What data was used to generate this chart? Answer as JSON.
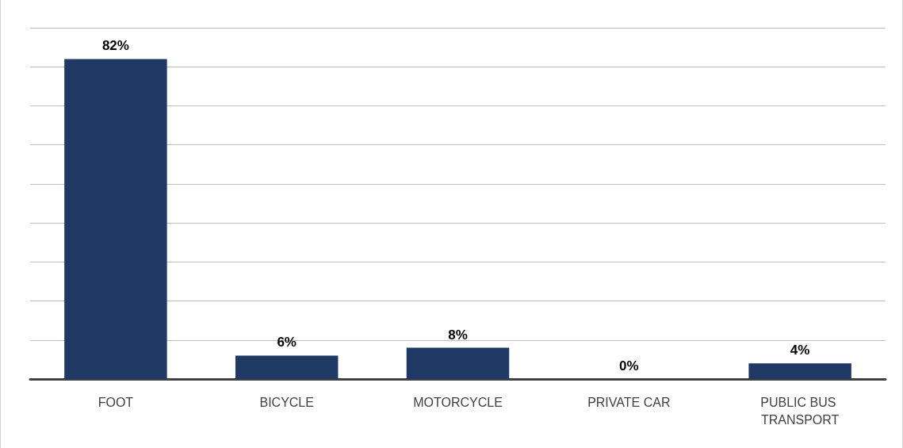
{
  "chart_data": {
    "type": "bar",
    "categories": [
      "FOOT",
      "BICYCLE",
      "MOTORCYCLE",
      "PRIVATE CAR",
      "PUBLIC BUS TRANSPORT"
    ],
    "values": [
      82,
      6,
      8,
      0,
      4
    ],
    "value_labels": [
      "82%",
      "6%",
      "8%",
      "0%",
      "4%"
    ],
    "color": "#1f3864",
    "ylim": [
      0,
      90
    ],
    "yticks": [
      {
        "value": 0,
        "label": null
      },
      {
        "value": 10,
        "label": null
      },
      {
        "value": 20,
        "label": null
      },
      {
        "value": 30,
        "label": null
      },
      {
        "value": 40,
        "label": null
      },
      {
        "value": 50,
        "label": null
      },
      {
        "value": 60,
        "label": null
      },
      {
        "value": 70,
        "label": null
      },
      {
        "value": 80,
        "label": null
      },
      {
        "value": 90,
        "label": null
      }
    ],
    "grid": true,
    "tick_labels": "x"
  }
}
